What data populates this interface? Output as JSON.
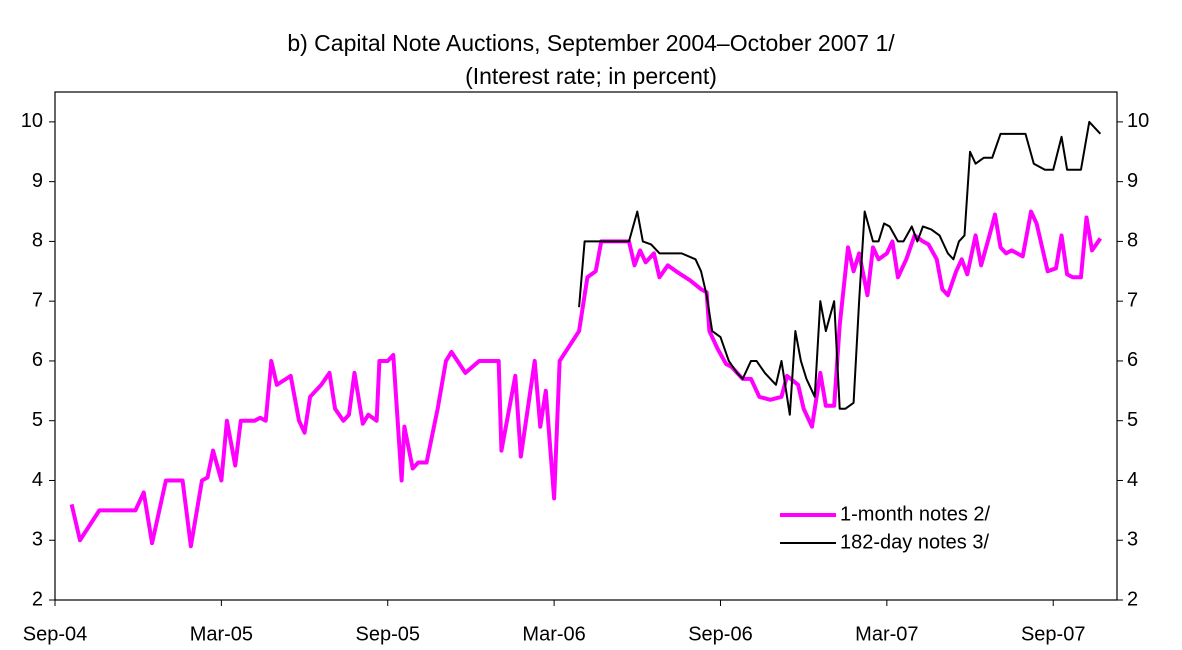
{
  "chart_data": {
    "type": "line",
    "title": "b) Capital Note Auctions, September 2004–October 2007 1/",
    "subtitle": "(Interest rate; in percent)",
    "xlim": [
      0,
      38.3
    ],
    "xticks": [
      {
        "value": 0,
        "label": "Sep-04"
      },
      {
        "value": 6,
        "label": "Mar-05"
      },
      {
        "value": 12,
        "label": "Sep-05"
      },
      {
        "value": 18,
        "label": "Mar-06"
      },
      {
        "value": 24,
        "label": "Sep-06"
      },
      {
        "value": 30,
        "label": "Mar-07"
      },
      {
        "value": 36,
        "label": "Sep-07"
      }
    ],
    "ylim": [
      2,
      10.5
    ],
    "yticks": [
      2,
      3,
      4,
      5,
      6,
      7,
      8,
      9,
      10
    ],
    "y2lim": [
      2,
      10.5
    ],
    "y2ticks": [
      2,
      3,
      4,
      5,
      6,
      7,
      8,
      9,
      10
    ],
    "legend": "lower right",
    "series": [
      {
        "name": "1-month notes 2/",
        "color": "#ff00ff",
        "x": [
          0.6,
          0.9,
          1.6,
          2.9,
          3.2,
          3.5,
          4.0,
          4.6,
          4.9,
          5.3,
          5.5,
          5.7,
          6.0,
          6.2,
          6.5,
          6.7,
          7.2,
          7.4,
          7.6,
          7.8,
          8.0,
          8.5,
          8.8,
          9.0,
          9.2,
          9.6,
          9.9,
          10.1,
          10.4,
          10.6,
          10.8,
          11.1,
          11.3,
          11.6,
          11.7,
          12.0,
          12.2,
          12.5,
          12.6,
          12.9,
          13.1,
          13.4,
          13.8,
          14.1,
          14.3,
          14.8,
          15.3,
          16.0,
          16.1,
          16.6,
          16.8,
          17.3,
          17.5,
          17.7,
          18.0,
          18.2,
          18.9,
          19.2,
          19.5,
          19.7,
          20.7,
          20.9,
          21.1,
          21.3,
          21.6,
          21.8,
          22.1,
          22.4,
          22.9,
          23.3,
          23.5,
          23.6,
          23.9,
          24.2,
          24.4,
          24.8,
          25.1,
          25.4,
          25.8,
          26.2,
          26.4,
          26.8,
          27.0,
          27.3,
          27.6,
          27.8,
          28.1,
          28.3,
          28.6,
          28.8,
          29.0,
          29.3,
          29.5,
          29.7,
          30.0,
          30.2,
          30.4,
          30.7,
          31.0,
          31.3,
          31.5,
          31.8,
          32.0,
          32.2,
          32.5,
          32.7,
          32.9,
          33.2,
          33.4,
          33.7,
          33.9,
          34.1,
          34.3,
          34.5,
          34.9,
          35.2,
          35.4,
          35.8,
          36.1,
          36.3,
          36.5,
          36.7,
          37.0,
          37.2,
          37.4,
          37.7
        ],
        "values": [
          3.6,
          3.0,
          3.5,
          3.5,
          3.8,
          2.95,
          4.0,
          4.0,
          2.9,
          4.0,
          4.05,
          4.5,
          4.0,
          5.0,
          4.25,
          5.0,
          5.0,
          5.05,
          5.0,
          6.0,
          5.6,
          5.75,
          5.0,
          4.8,
          5.4,
          5.6,
          5.8,
          5.2,
          5.0,
          5.1,
          5.8,
          4.95,
          5.1,
          5.0,
          6.0,
          6.0,
          6.1,
          4.0,
          4.9,
          4.2,
          4.3,
          4.3,
          5.2,
          6.0,
          6.15,
          5.8,
          6.0,
          6.0,
          4.5,
          5.75,
          4.4,
          6.0,
          4.9,
          5.5,
          3.7,
          6.0,
          6.5,
          7.4,
          7.5,
          8.0,
          8.0,
          7.6,
          7.85,
          7.65,
          7.8,
          7.4,
          7.6,
          7.5,
          7.35,
          7.2,
          7.15,
          6.5,
          6.2,
          5.95,
          5.9,
          5.7,
          5.7,
          5.4,
          5.35,
          5.4,
          5.75,
          5.6,
          5.2,
          4.9,
          5.8,
          5.25,
          5.25,
          6.6,
          7.9,
          7.5,
          7.8,
          7.1,
          7.9,
          7.7,
          7.8,
          8.0,
          7.4,
          7.7,
          8.1,
          8.0,
          7.95,
          7.7,
          7.2,
          7.1,
          7.5,
          7.7,
          7.45,
          8.1,
          7.6,
          8.1,
          8.45,
          7.9,
          7.8,
          7.85,
          7.75,
          8.5,
          8.3,
          7.5,
          7.55,
          8.1,
          7.45,
          7.4,
          7.4,
          8.4,
          7.85,
          8.05
        ]
      },
      {
        "name": "182-day notes 3/",
        "color": "#000000",
        "axis": "y2",
        "x": [
          18.9,
          19.1,
          20.7,
          21.0,
          21.2,
          21.5,
          21.8,
          22.6,
          23.1,
          23.3,
          23.5,
          23.7,
          24.0,
          24.3,
          24.6,
          24.8,
          25.1,
          25.3,
          25.6,
          26.0,
          26.2,
          26.5,
          26.7,
          26.9,
          27.1,
          27.4,
          27.6,
          27.8,
          28.1,
          28.3,
          28.5,
          28.8,
          29.0,
          29.2,
          29.5,
          29.7,
          29.9,
          30.1,
          30.4,
          30.6,
          30.9,
          31.1,
          31.3,
          31.6,
          31.9,
          32.2,
          32.4,
          32.6,
          32.8,
          33.0,
          33.2,
          33.5,
          33.8,
          34.1,
          34.4,
          35.0,
          35.3,
          35.7,
          36.0,
          36.3,
          36.5,
          37.0,
          37.3,
          37.7
        ],
        "values": [
          6.9,
          8.0,
          8.0,
          8.5,
          8.0,
          7.95,
          7.8,
          7.8,
          7.7,
          7.5,
          7.1,
          6.5,
          6.4,
          6.0,
          5.8,
          5.7,
          6.0,
          6.0,
          5.8,
          5.6,
          6.0,
          5.1,
          6.5,
          6.0,
          5.7,
          5.4,
          7.0,
          6.5,
          7.0,
          5.2,
          5.2,
          5.3,
          7.0,
          8.5,
          8.0,
          8.0,
          8.3,
          8.25,
          8.0,
          8.0,
          8.25,
          8.0,
          8.25,
          8.2,
          8.1,
          7.8,
          7.7,
          8.0,
          8.1,
          9.5,
          9.3,
          9.4,
          9.4,
          9.8,
          9.8,
          9.8,
          9.3,
          9.2,
          9.2,
          9.75,
          9.2,
          9.2,
          10.0,
          9.8
        ]
      }
    ]
  }
}
